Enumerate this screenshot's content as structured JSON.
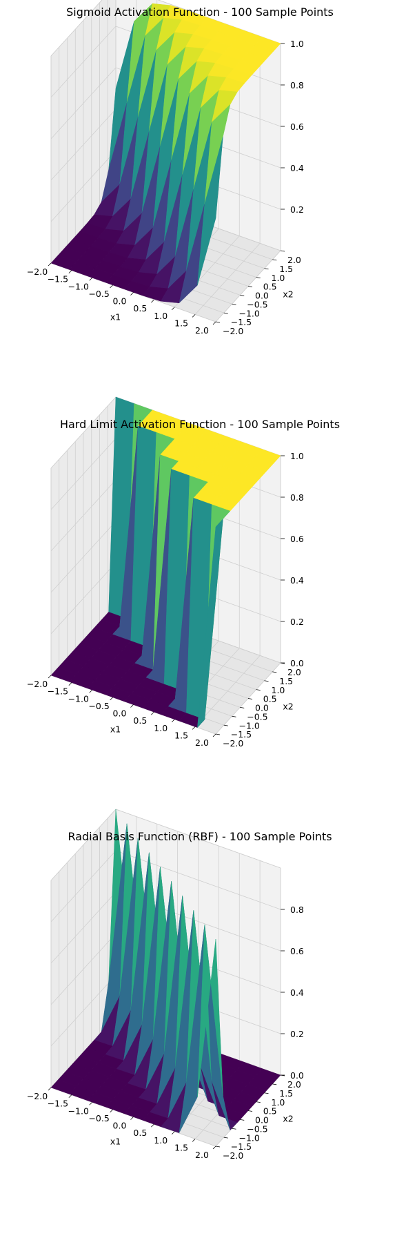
{
  "chart_data": [
    {
      "type": "surface",
      "title": "Sigmoid Activation Function - 100 Sample Points",
      "function": "sigmoid",
      "colormap": "viridis",
      "xlabel": "x1",
      "ylabel": "x2",
      "zlabel": "",
      "xlim": [
        -2,
        2
      ],
      "ylim": [
        -2,
        2
      ],
      "zlim": [
        0,
        1
      ],
      "xticks": [
        "−2.0",
        "−1.5",
        "−1.0",
        "−0.5",
        "0.0",
        "0.5",
        "1.0",
        "1.5",
        "2.0"
      ],
      "yticks": [
        "−2.0",
        "−1.5",
        "−1.0",
        "−0.5",
        "0.0",
        "0.5",
        "1.0",
        "1.5",
        "2.0"
      ],
      "zticks": [
        "0.2",
        "0.4",
        "0.6",
        "0.8",
        "1.0"
      ],
      "grid": true
    },
    {
      "type": "surface",
      "title": "Hard Limit Activation Function - 100 Sample Points",
      "function": "hardlim",
      "colormap": "viridis",
      "xlabel": "x1",
      "ylabel": "x2",
      "zlabel": "",
      "xlim": [
        -2,
        2
      ],
      "ylim": [
        -2,
        2
      ],
      "zlim": [
        0,
        1
      ],
      "xticks": [
        "−2.0",
        "−1.5",
        "−1.0",
        "−0.5",
        "0.0",
        "0.5",
        "1.0",
        "1.5",
        "2.0"
      ],
      "yticks": [
        "−2.0",
        "−1.5",
        "−1.0",
        "−0.5",
        "0.0",
        "0.5",
        "1.0",
        "1.5",
        "2.0"
      ],
      "zticks": [
        "0.0",
        "0.2",
        "0.4",
        "0.6",
        "0.8",
        "1.0"
      ],
      "grid": true
    },
    {
      "type": "surface",
      "title": "Radial Basis Function (RBF) - 100 Sample Points",
      "function": "rbf",
      "colormap": "viridis",
      "xlabel": "x1",
      "ylabel": "x2",
      "zlabel": "",
      "xlim": [
        -2,
        2
      ],
      "ylim": [
        -2,
        2
      ],
      "zlim": [
        0,
        1
      ],
      "xticks": [
        "−2.0",
        "−1.5",
        "−1.0",
        "−0.5",
        "0.0",
        "0.5",
        "1.0",
        "1.5",
        "2.0"
      ],
      "yticks": [
        "−2.0",
        "−1.5",
        "−1.0",
        "−0.5",
        "0.0",
        "0.5",
        "1.0",
        "1.5",
        "2.0"
      ],
      "zticks": [
        "0.0",
        "0.2",
        "0.4",
        "0.6",
        "0.8"
      ],
      "grid": true
    }
  ]
}
